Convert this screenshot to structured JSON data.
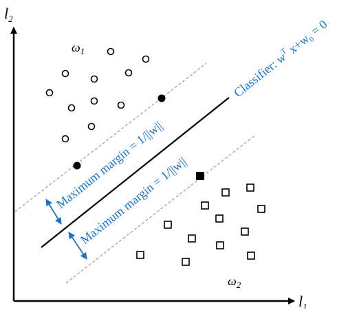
{
  "axes": {
    "x_label": "l",
    "x_subscript": "1",
    "y_label": "l",
    "y_subscript": "2"
  },
  "classes": {
    "omega1": {
      "symbol": "ω",
      "subscript": "1"
    },
    "omega2": {
      "symbol": "ω",
      "subscript": "2"
    }
  },
  "classifier": {
    "prefix": "Classifier: ",
    "w": "w",
    "sup": "T",
    "mid": " x+w",
    "sub": "0",
    "suffix": " = 0"
  },
  "margins": {
    "upper_label": "Maximum margin = 1/||w||",
    "lower_label": "Maximum margin = 1/||w||"
  },
  "colors": {
    "accent": "#1a73c6",
    "ink": "#000000",
    "dashed": "#888888"
  }
}
